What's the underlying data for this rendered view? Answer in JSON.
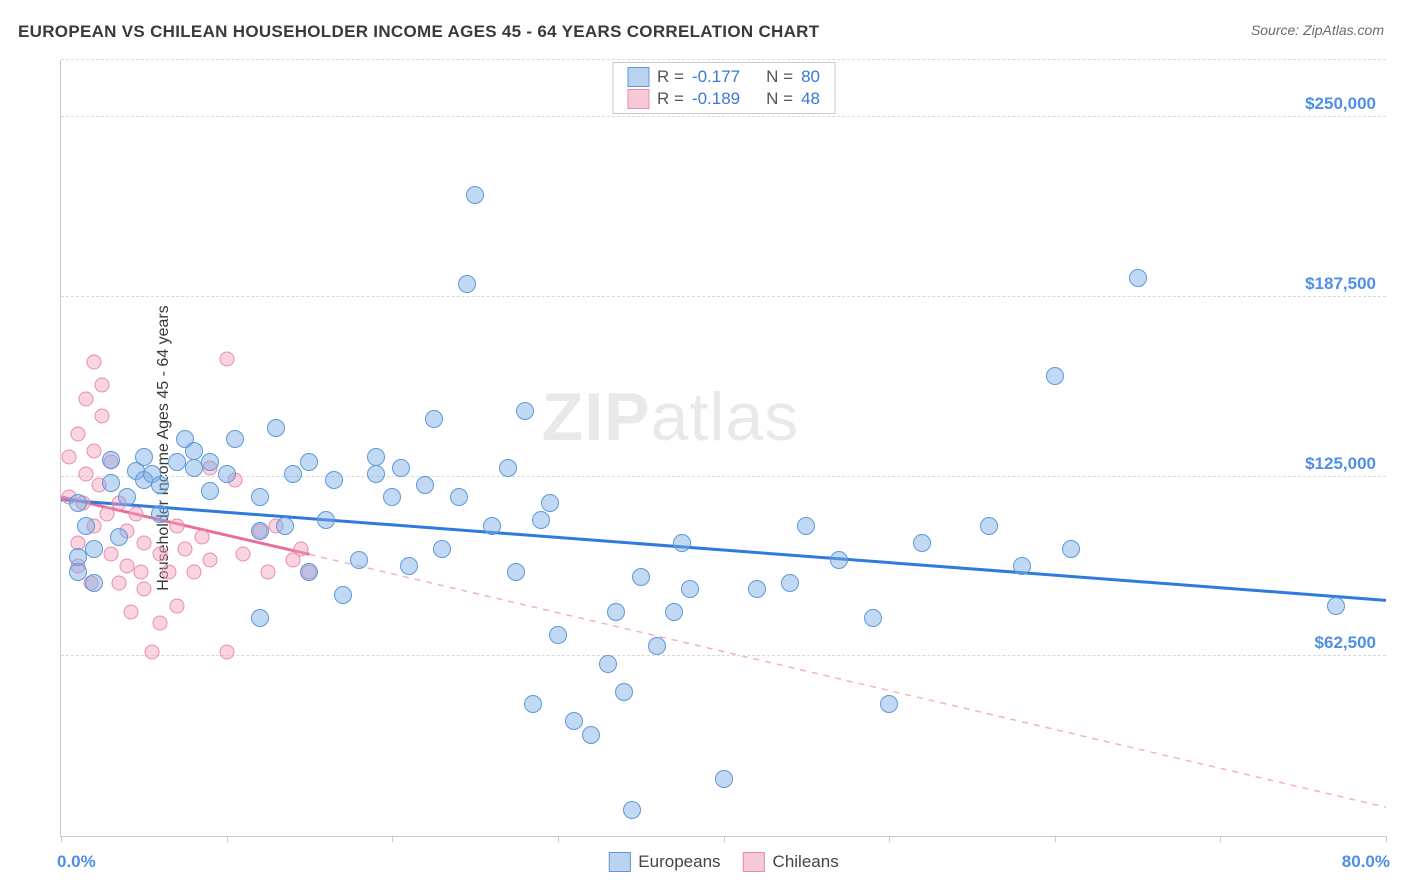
{
  "header": {
    "title": "EUROPEAN VS CHILEAN HOUSEHOLDER INCOME AGES 45 - 64 YEARS CORRELATION CHART",
    "source": "Source: ZipAtlas.com"
  },
  "watermark": {
    "left": "ZIP",
    "right": "atlas"
  },
  "chart": {
    "type": "scatter",
    "xlim": [
      0,
      80
    ],
    "ylim": [
      0,
      270000
    ],
    "background_color": "#ffffff",
    "grid_color": "#d9d9d9",
    "axis_color": "#c9c9c9",
    "y_axis_title": "Householder Income Ages 45 - 64 years",
    "y_axis_title_fontsize": 16,
    "y_gridlines": [
      62500,
      125000,
      187500,
      250000,
      270000
    ],
    "y_tick_labels": {
      "62500": "$62,500",
      "125000": "$125,000",
      "187500": "$187,500",
      "250000": "$250,000"
    },
    "tick_label_color": "#4f8fe6",
    "tick_label_fontsize": 17,
    "x_ticks": [
      0,
      10,
      20,
      30,
      40,
      50,
      60,
      70,
      80
    ],
    "x_labels": {
      "start": "0.0%",
      "end": "80.0%"
    },
    "marker_radius_eu": 9,
    "marker_radius_ch": 7.5,
    "series": {
      "europeans": {
        "label": "Europeans",
        "fill": "rgba(120,170,230,0.45)",
        "stroke": "#5e98da",
        "swatch_fill": "#b9d3f1",
        "swatch_border": "#5e98da",
        "trend": {
          "x1": 0,
          "y1": 117000,
          "x2": 80,
          "y2": 82000,
          "color": "#2f7bdc",
          "width": 3,
          "dash": "none"
        },
        "trend_ext": null,
        "points": [
          [
            1,
            92000
          ],
          [
            1,
            97000
          ],
          [
            1,
            116000
          ],
          [
            1.5,
            108000
          ],
          [
            2,
            100000
          ],
          [
            2,
            88000
          ],
          [
            3,
            123000
          ],
          [
            3,
            131000
          ],
          [
            3.5,
            104000
          ],
          [
            4,
            118000
          ],
          [
            4.5,
            127000
          ],
          [
            5,
            124000
          ],
          [
            5,
            132000
          ],
          [
            5.5,
            126000
          ],
          [
            6,
            122000
          ],
          [
            6,
            112000
          ],
          [
            7,
            130000
          ],
          [
            7.5,
            138000
          ],
          [
            8,
            128000
          ],
          [
            8,
            134000
          ],
          [
            9,
            120000
          ],
          [
            9,
            130000
          ],
          [
            10,
            126000
          ],
          [
            10.5,
            138000
          ],
          [
            12,
            118000
          ],
          [
            12,
            106000
          ],
          [
            12,
            76000
          ],
          [
            13,
            142000
          ],
          [
            13.5,
            108000
          ],
          [
            14,
            126000
          ],
          [
            15,
            92000
          ],
          [
            15,
            130000
          ],
          [
            16,
            110000
          ],
          [
            16.5,
            124000
          ],
          [
            17,
            84000
          ],
          [
            18,
            96000
          ],
          [
            19,
            132000
          ],
          [
            19,
            126000
          ],
          [
            20,
            118000
          ],
          [
            20.5,
            128000
          ],
          [
            21,
            94000
          ],
          [
            22,
            122000
          ],
          [
            22.5,
            145000
          ],
          [
            23,
            100000
          ],
          [
            24,
            118000
          ],
          [
            24.5,
            192000
          ],
          [
            25,
            223000
          ],
          [
            26,
            108000
          ],
          [
            27,
            128000
          ],
          [
            27.5,
            92000
          ],
          [
            28,
            148000
          ],
          [
            28.5,
            46000
          ],
          [
            29,
            110000
          ],
          [
            29.5,
            116000
          ],
          [
            30,
            70000
          ],
          [
            31,
            40000
          ],
          [
            32,
            35000
          ],
          [
            33,
            60000
          ],
          [
            33.5,
            78000
          ],
          [
            34,
            50000
          ],
          [
            34.5,
            9000
          ],
          [
            35,
            90000
          ],
          [
            36,
            66000
          ],
          [
            37,
            78000
          ],
          [
            37.5,
            102000
          ],
          [
            38,
            86000
          ],
          [
            40,
            20000
          ],
          [
            42,
            86000
          ],
          [
            44,
            88000
          ],
          [
            45,
            108000
          ],
          [
            47,
            96000
          ],
          [
            49,
            76000
          ],
          [
            50,
            46000
          ],
          [
            52,
            102000
          ],
          [
            56,
            108000
          ],
          [
            58,
            94000
          ],
          [
            60,
            160000
          ],
          [
            61,
            100000
          ],
          [
            65,
            194000
          ],
          [
            77,
            80000
          ]
        ]
      },
      "chileans": {
        "label": "Chileans",
        "fill": "rgba(244,160,188,0.45)",
        "stroke": "#e98cab",
        "swatch_fill": "#f6c9d7",
        "swatch_border": "#e98cab",
        "trend": {
          "x1": 0,
          "y1": 118000,
          "x2": 15,
          "y2": 98000,
          "color": "#ea6f95",
          "width": 3,
          "dash": "none"
        },
        "trend_ext": {
          "x1": 15,
          "y1": 98000,
          "x2": 80,
          "y2": 10000,
          "color": "#f3b2c5",
          "width": 1.5,
          "dash": "6,6"
        },
        "points": [
          [
            0.5,
            132000
          ],
          [
            0.5,
            118000
          ],
          [
            1,
            140000
          ],
          [
            1,
            102000
          ],
          [
            1,
            94000
          ],
          [
            1.3,
            116000
          ],
          [
            1.5,
            152000
          ],
          [
            1.5,
            126000
          ],
          [
            1.8,
            88000
          ],
          [
            2,
            165000
          ],
          [
            2,
            134000
          ],
          [
            2,
            108000
          ],
          [
            2.3,
            122000
          ],
          [
            2.5,
            157000
          ],
          [
            2.5,
            146000
          ],
          [
            2.8,
            112000
          ],
          [
            3,
            130000
          ],
          [
            3,
            98000
          ],
          [
            3.5,
            88000
          ],
          [
            3.5,
            116000
          ],
          [
            4,
            106000
          ],
          [
            4,
            94000
          ],
          [
            4.2,
            78000
          ],
          [
            4.5,
            112000
          ],
          [
            4.8,
            92000
          ],
          [
            5,
            102000
          ],
          [
            5,
            86000
          ],
          [
            5.5,
            64000
          ],
          [
            6,
            98000
          ],
          [
            6,
            74000
          ],
          [
            6.5,
            92000
          ],
          [
            7,
            108000
          ],
          [
            7,
            80000
          ],
          [
            7.5,
            100000
          ],
          [
            8,
            92000
          ],
          [
            8.5,
            104000
          ],
          [
            9,
            128000
          ],
          [
            9,
            96000
          ],
          [
            10,
            64000
          ],
          [
            10,
            166000
          ],
          [
            10.5,
            124000
          ],
          [
            11,
            98000
          ],
          [
            12,
            106000
          ],
          [
            12.5,
            92000
          ],
          [
            13,
            108000
          ],
          [
            14,
            96000
          ],
          [
            14.5,
            100000
          ],
          [
            15,
            92000
          ]
        ]
      }
    },
    "stats_legend": {
      "row1": {
        "r": "-0.177",
        "n": "80",
        "swatch": "europeans"
      },
      "row2": {
        "r": "-0.189",
        "n": "48",
        "swatch": "chileans"
      },
      "r_prefix": "R = ",
      "n_prefix": "N = "
    }
  }
}
